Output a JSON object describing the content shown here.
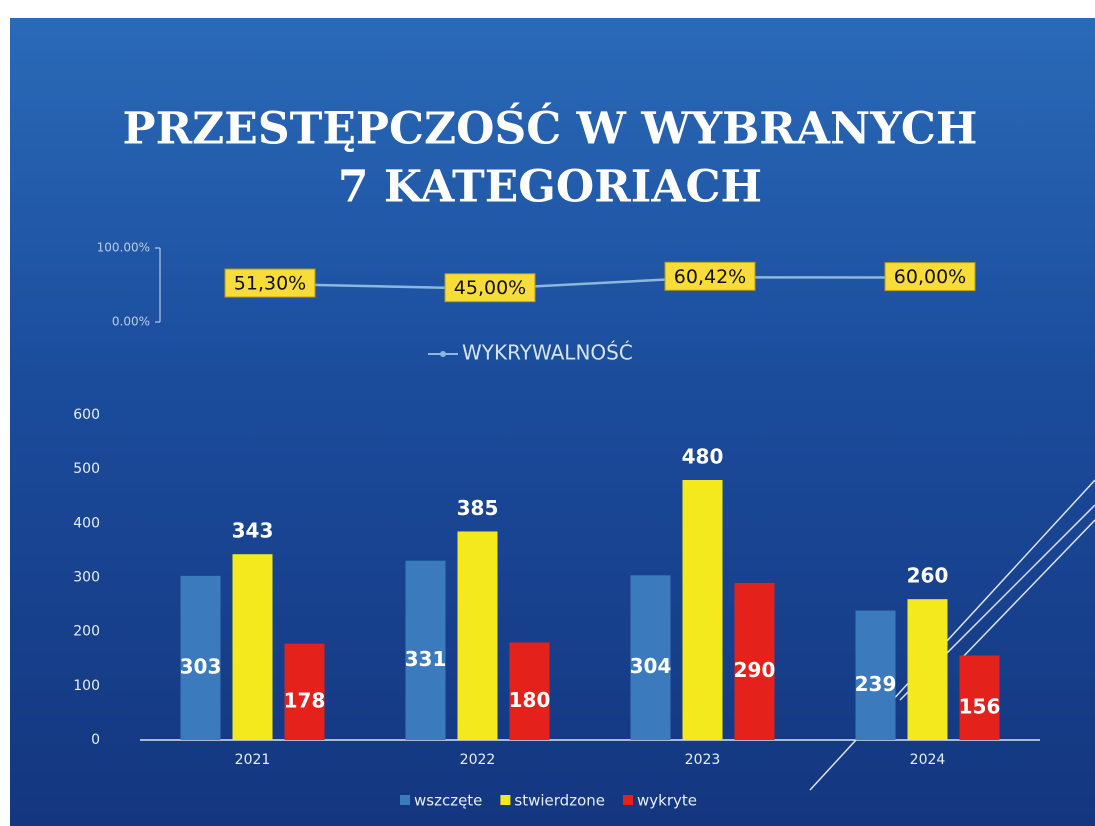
{
  "title": [
    "PRZESTĘPCZOŚĆ W WYBRANYCH",
    "7 KATEGORIACH"
  ],
  "chart_data": [
    {
      "type": "line",
      "categories": [
        null,
        null,
        null,
        null
      ],
      "series": [
        {
          "name": "WYKRYWALNOŚĆ",
          "color": "#8db8de",
          "values": [
            51.3,
            45.0,
            60.42,
            60.0
          ],
          "value_labels": [
            "51,30%",
            "45,00%",
            "60,42%",
            "60,00%"
          ]
        }
      ],
      "ylim": [
        0,
        100
      ],
      "yticks": [
        {
          "value": 0,
          "label": "0.00%"
        },
        {
          "value": 100,
          "label": "100.00%"
        }
      ],
      "legend": "bottom"
    },
    {
      "type": "bar",
      "categories": [
        "2021",
        "2022",
        "2023",
        "2024"
      ],
      "series": [
        {
          "name": "wszczęte",
          "color": "#3b7bbd",
          "values": [
            303,
            331,
            304,
            239
          ]
        },
        {
          "name": "stwierdzone",
          "color": "#f4e91c",
          "values": [
            343,
            385,
            480,
            260
          ]
        },
        {
          "name": "wykryte",
          "color": "#e4221b",
          "values": [
            178,
            180,
            290,
            156
          ]
        }
      ],
      "ylim": [
        0,
        600
      ],
      "yticks": [
        0,
        100,
        200,
        300,
        400,
        500,
        600
      ],
      "legend": "bottom"
    }
  ]
}
